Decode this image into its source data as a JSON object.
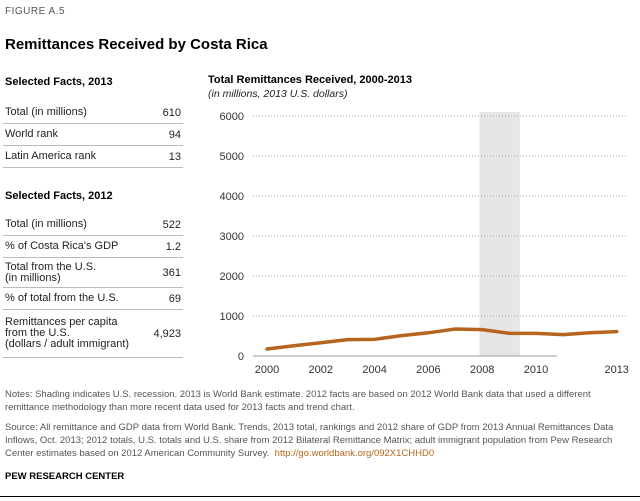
{
  "figure_label": "FIGURE A.5",
  "title": "Remittances Received by Costa Rica",
  "facts2013": {
    "heading": "Selected Facts, 2013",
    "rows": [
      [
        "Total (in millions)",
        "610"
      ],
      [
        "World rank",
        "94"
      ],
      [
        "Latin America rank",
        "13"
      ]
    ]
  },
  "facts2012": {
    "heading": "Selected Facts, 2012",
    "rows": [
      [
        "Total (in millions)",
        "522"
      ],
      [
        "% of Costa Rica's GDP",
        "1.2"
      ],
      [
        "Total from the U.S.\n(in millions)",
        "361"
      ],
      [
        "% of total from the U.S.",
        "69"
      ],
      [
        "Remittances per capita\nfrom the U.S.\n(dollars / adult immigrant)",
        "4,923"
      ]
    ]
  },
  "chart_data": {
    "type": "line",
    "title": "Total Remittances Received, 2000-2013",
    "subtitle": "(in millions, 2013 U.S. dollars)",
    "x": [
      2000,
      2001,
      2002,
      2003,
      2004,
      2005,
      2006,
      2007,
      2008,
      2009,
      2010,
      2011,
      2012,
      2013
    ],
    "values": [
      175,
      255,
      330,
      410,
      417,
      510,
      580,
      675,
      660,
      567,
      565,
      533,
      580,
      610
    ],
    "ylim": [
      0,
      6000
    ],
    "yticks": [
      "0",
      "1000",
      "2000",
      "3000",
      "4000",
      "5000",
      "6000"
    ],
    "xticks": [
      "2000",
      "2002",
      "2004",
      "2006",
      "2008",
      "2010",
      "2013"
    ],
    "shading": {
      "label": "U.S. recession",
      "from": 2007.9,
      "to": 2009.4
    },
    "grid": true,
    "line_color": "#b5651d",
    "shade_color": "#e6e6e6"
  },
  "notes": "Notes: Shading indicates U.S. recession. 2013 is World Bank estimate. 2012 facts are based on 2012 World Bank data that used a different remittance methodology than more recent data used for 2013 facts and trend chart.",
  "source": "Source: All remittance and GDP data from World Bank. Trends, 2013 total, rankings and 2012 share of GDP from 2013 Annual Remittances Data Inflows, Oct. 2013; 2012 totals, U.S. totals and U.S. share from 2012 Bilateral Remittance Matrix; adult immigrant population from Pew Research Center estimates based on 2012 American Community Survey.",
  "source_link": "http://go.worldbank.org/092X1CHHD0",
  "footer": "PEW RESEARCH CENTER"
}
